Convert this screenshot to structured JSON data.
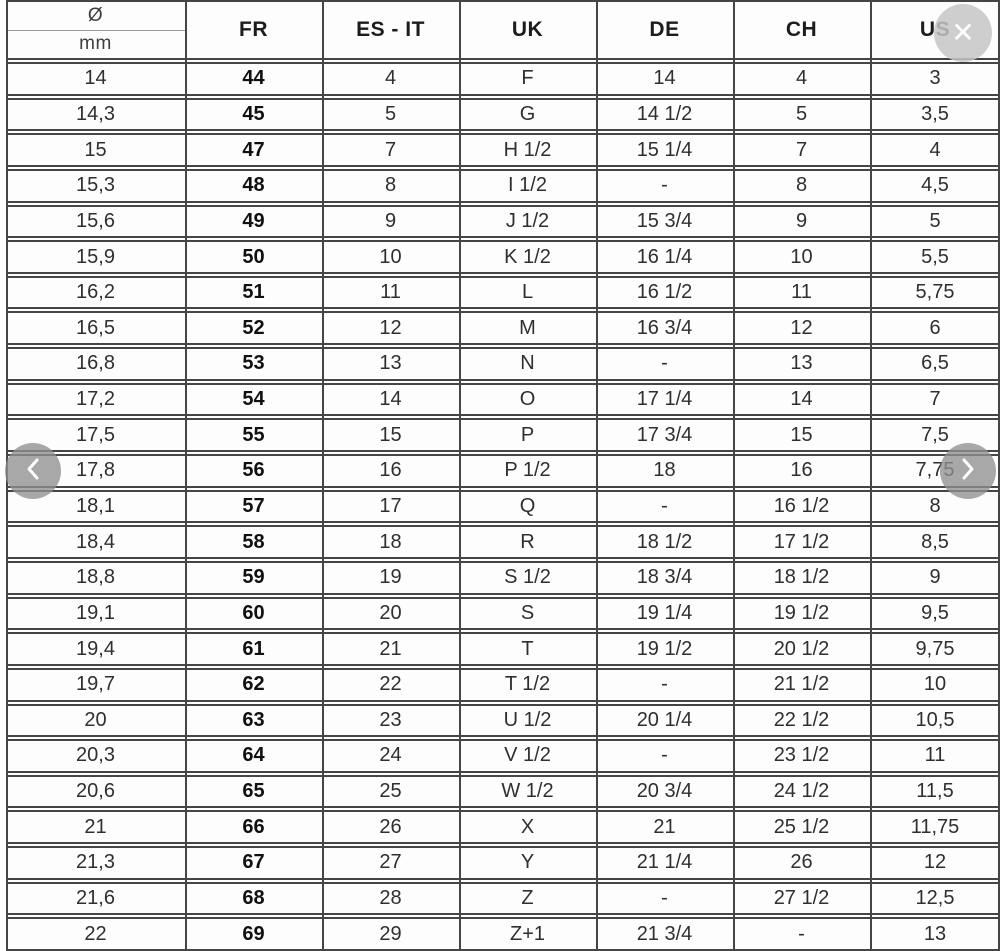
{
  "viewer": {
    "close_button": {
      "glyph": "✕",
      "icon": "close-icon"
    },
    "prev_button": {
      "glyph": "‹",
      "icon": "chevron-left-icon"
    },
    "next_button": {
      "glyph": "›",
      "icon": "chevron-right-icon"
    }
  },
  "colors": {
    "grid_line": "#454545",
    "thin_divider": "#9a9a9a",
    "text": "#2f2f2f",
    "header_text": "#1c1c1c",
    "close_circle": "#c6c6c6",
    "nav_circle": "#8f8f8f",
    "background": "#ffffff"
  },
  "table": {
    "header": {
      "diameter_symbol": "Ø",
      "diameter_unit": "mm",
      "cols": [
        "FR",
        "ES - IT",
        "UK",
        "DE",
        "CH",
        "US"
      ]
    },
    "rows": [
      [
        "14",
        "44",
        "4",
        "F",
        "14",
        "4",
        "3"
      ],
      [
        "14,3",
        "45",
        "5",
        "G",
        "14 1/2",
        "5",
        "3,5"
      ],
      [
        "15",
        "47",
        "7",
        "H 1/2",
        "15 1/4",
        "7",
        "4"
      ],
      [
        "15,3",
        "48",
        "8",
        "I 1/2",
        "-",
        "8",
        "4,5"
      ],
      [
        "15,6",
        "49",
        "9",
        "J 1/2",
        "15 3/4",
        "9",
        "5"
      ],
      [
        "15,9",
        "50",
        "10",
        "K 1/2",
        "16 1/4",
        "10",
        "5,5"
      ],
      [
        "16,2",
        "51",
        "11",
        "L",
        "16 1/2",
        "11",
        "5,75"
      ],
      [
        "16,5",
        "52",
        "12",
        "M",
        "16 3/4",
        "12",
        "6"
      ],
      [
        "16,8",
        "53",
        "13",
        "N",
        "-",
        "13",
        "6,5"
      ],
      [
        "17,2",
        "54",
        "14",
        "O",
        "17 1/4",
        "14",
        "7"
      ],
      [
        "17,5",
        "55",
        "15",
        "P",
        "17 3/4",
        "15",
        "7,5"
      ],
      [
        "17,8",
        "56",
        "16",
        "P 1/2",
        "18",
        "16",
        "7,75"
      ],
      [
        "18,1",
        "57",
        "17",
        "Q",
        "-",
        "16 1/2",
        "8"
      ],
      [
        "18,4",
        "58",
        "18",
        "R",
        "18 1/2",
        "17 1/2",
        "8,5"
      ],
      [
        "18,8",
        "59",
        "19",
        "S 1/2",
        "18 3/4",
        "18 1/2",
        "9"
      ],
      [
        "19,1",
        "60",
        "20",
        "S",
        "19 1/4",
        "19 1/2",
        "9,5"
      ],
      [
        "19,4",
        "61",
        "21",
        "T",
        "19 1/2",
        "20 1/2",
        "9,75"
      ],
      [
        "19,7",
        "62",
        "22",
        "T 1/2",
        "-",
        "21 1/2",
        "10"
      ],
      [
        "20",
        "63",
        "23",
        "U 1/2",
        "20 1/4",
        "22 1/2",
        "10,5"
      ],
      [
        "20,3",
        "64",
        "24",
        "V 1/2",
        "-",
        "23 1/2",
        "11"
      ],
      [
        "20,6",
        "65",
        "25",
        "W 1/2",
        "20 3/4",
        "24 1/2",
        "11,5"
      ],
      [
        "21",
        "66",
        "26",
        "X",
        "21",
        "25 1/2",
        "11,75"
      ],
      [
        "21,3",
        "67",
        "27",
        "Y",
        "21 1/4",
        "26",
        "12"
      ],
      [
        "21,6",
        "68",
        "28",
        "Z",
        "-",
        "27 1/2",
        "12,5"
      ],
      [
        "22",
        "69",
        "29",
        "Z+1",
        "21 3/4",
        "-",
        "13"
      ]
    ]
  }
}
